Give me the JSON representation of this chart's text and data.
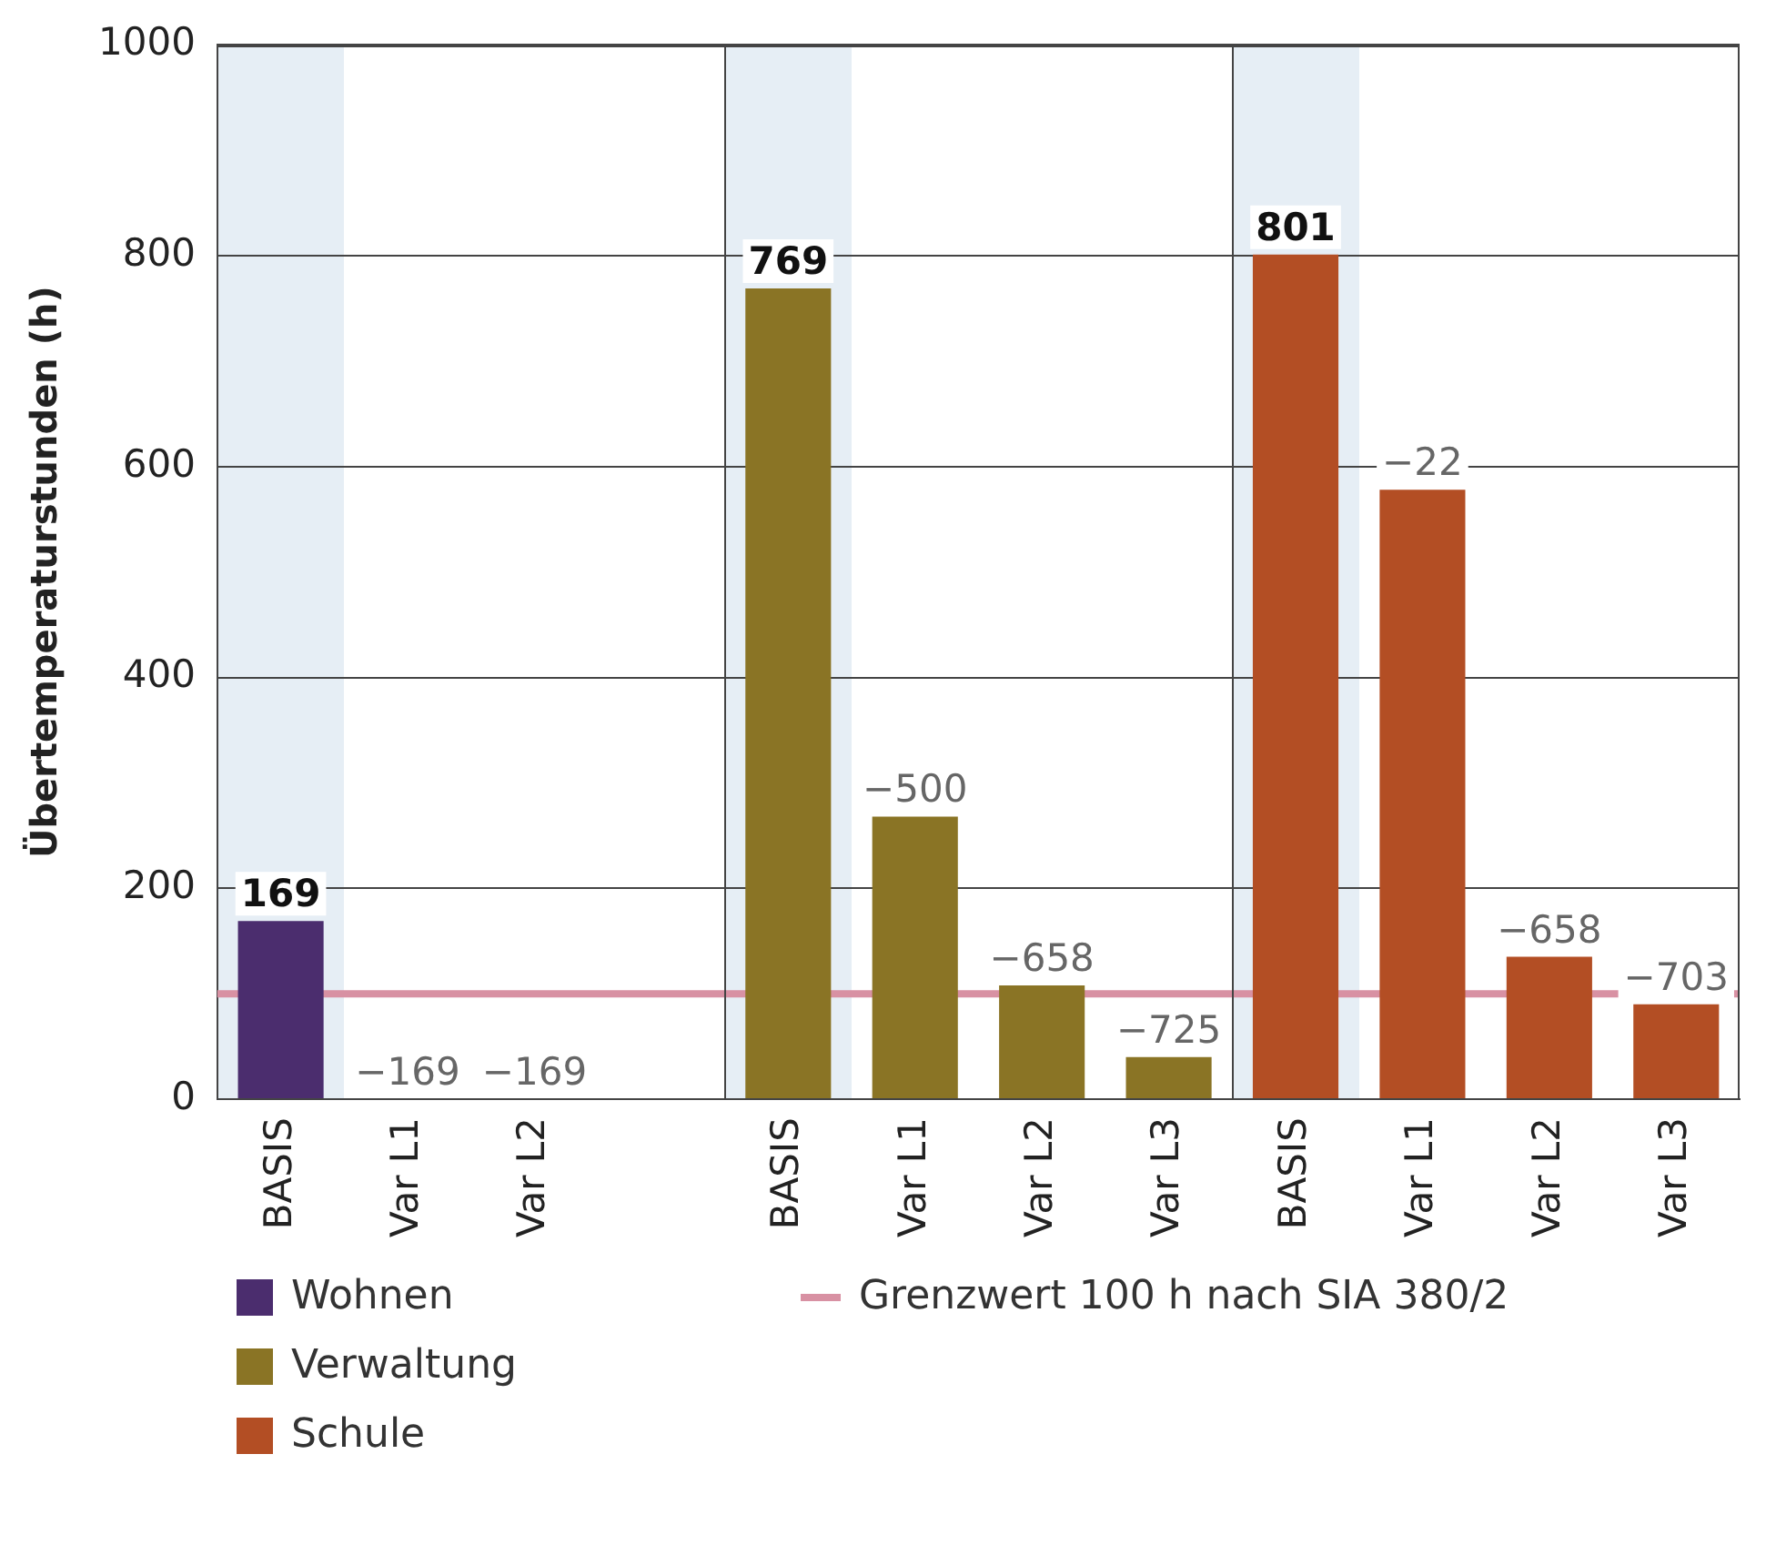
{
  "chart_data": {
    "type": "bar",
    "ylabel": "Übertemperaturstunden (h)",
    "categories": [
      "BASIS",
      "Var L1",
      "Var L2",
      null,
      "BASIS",
      "Var L1",
      "Var L2",
      "Var L3",
      "BASIS",
      "Var L1",
      "Var L2",
      "Var L3"
    ],
    "series": [
      {
        "name": "Wohnen",
        "color": "#4b2d6e",
        "values": [
          169,
          0,
          0,
          null,
          null,
          null,
          null,
          null,
          null,
          null,
          null,
          null
        ],
        "value_labels": [
          "169",
          null,
          null,
          null,
          null,
          null,
          null,
          null,
          null,
          null,
          null,
          null
        ]
      },
      {
        "name": "Verwaltung",
        "color": "#8a7425",
        "values": [
          null,
          null,
          null,
          null,
          769,
          268,
          108,
          40,
          null,
          null,
          null,
          null
        ],
        "value_labels": [
          null,
          null,
          null,
          null,
          "769",
          null,
          null,
          null,
          null,
          null,
          null,
          null
        ]
      },
      {
        "name": "Schule",
        "color": "#b34e24",
        "values": [
          null,
          null,
          null,
          null,
          null,
          null,
          null,
          null,
          801,
          578,
          135,
          90
        ],
        "value_labels": [
          null,
          null,
          null,
          null,
          null,
          null,
          null,
          null,
          "801",
          null,
          null,
          null
        ]
      }
    ],
    "annotations": [
      "−169",
      "−169",
      "−500",
      "−658",
      "−725",
      "−22",
      "−658",
      "−703"
    ],
    "stacked": true,
    "ylim": [
      0,
      1000
    ],
    "yticks": [
      0,
      200,
      400,
      600,
      800,
      1000
    ],
    "grid": "y",
    "legend": "bottom",
    "ref_lines": [
      {
        "axis": "y",
        "value": 100,
        "label": "Grenzwert 100 h nach SIA 380/2",
        "color": "#d891a3"
      }
    ]
  }
}
